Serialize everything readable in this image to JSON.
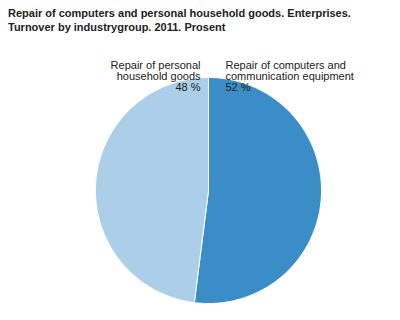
{
  "chart_data": {
    "type": "pie",
    "title": "Repair of computers and personal household goods. Enterprises.",
    "subtitle": "Turnover by industrygroup. 2011. Prosent",
    "categories": [
      "Repair of computers and communication equipment",
      "Repair of personal household goods"
    ],
    "values": [
      52,
      48
    ],
    "value_labels": [
      "52 %",
      "48 %"
    ],
    "colors": [
      "#3b8dc8",
      "#abcfe8"
    ],
    "data_labels": true
  }
}
